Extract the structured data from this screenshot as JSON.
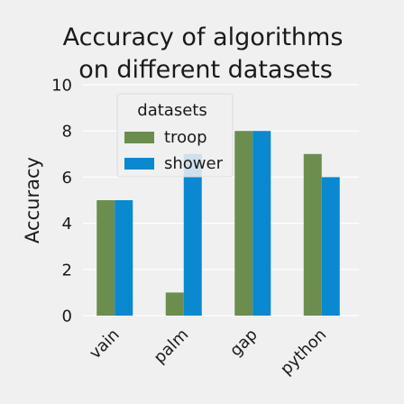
{
  "chart_data": {
    "type": "bar",
    "title": "Accuracy of algorithms on different datasets",
    "title_lines": [
      "Accuracy of algorithms",
      "on different datasets"
    ],
    "xlabel": "",
    "ylabel": "Accuracy",
    "ylim": [
      0,
      10
    ],
    "yticks": [
      0,
      2,
      4,
      6,
      8,
      10
    ],
    "categories": [
      "vain",
      "palm",
      "gap",
      "python"
    ],
    "series": [
      {
        "name": "troop",
        "color": "#6b8e4e",
        "values": [
          5,
          1,
          8,
          7
        ]
      },
      {
        "name": "shower",
        "color": "#0a88d0",
        "values": [
          5,
          7,
          8,
          6
        ]
      }
    ],
    "legend": {
      "title": "datasets",
      "position": "top-left"
    },
    "grid": true
  }
}
